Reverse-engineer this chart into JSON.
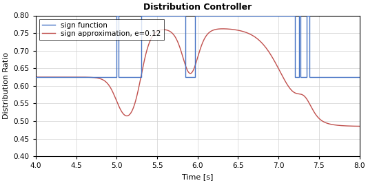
{
  "title": "Distribution Controller",
  "xlabel": "Time [s]",
  "ylabel": "Distribution Ratio",
  "xlim": [
    4,
    8
  ],
  "ylim": [
    0.4,
    0.8
  ],
  "xticks": [
    4,
    4.5,
    5,
    5.5,
    6,
    6.5,
    7,
    7.5,
    8
  ],
  "yticks": [
    0.4,
    0.45,
    0.5,
    0.55,
    0.6,
    0.65,
    0.7,
    0.75,
    0.8
  ],
  "blue_color": "#4472C4",
  "orange_color": "#C0504D",
  "legend_labels": [
    "sign function",
    "sign approximation, e=0.12"
  ],
  "blue_steady": 0.625,
  "blue_high": 0.8,
  "epsilon": 0.12,
  "orange_low": 0.485,
  "orange_high": 0.765,
  "orange_steady": 0.625,
  "blue_segments": [
    [
      4.0,
      0.625
    ],
    [
      5.0,
      0.625
    ],
    [
      5.0,
      0.8
    ],
    [
      5.02,
      0.8
    ],
    [
      5.02,
      0.625
    ],
    [
      5.3,
      0.625
    ],
    [
      5.3,
      0.8
    ],
    [
      5.85,
      0.8
    ],
    [
      5.85,
      0.625
    ],
    [
      5.97,
      0.625
    ],
    [
      5.97,
      0.8
    ],
    [
      7.2,
      0.8
    ],
    [
      7.2,
      0.625
    ],
    [
      7.25,
      0.625
    ],
    [
      7.25,
      0.8
    ],
    [
      7.27,
      0.8
    ],
    [
      7.27,
      0.625
    ],
    [
      7.35,
      0.625
    ],
    [
      7.35,
      0.8
    ],
    [
      7.38,
      0.8
    ],
    [
      7.38,
      0.625
    ],
    [
      8.0,
      0.625
    ]
  ],
  "orange_transitions": [
    [
      5.0,
      -1
    ],
    [
      5.3,
      1
    ],
    [
      5.85,
      -1
    ],
    [
      5.97,
      1
    ],
    [
      7.0,
      -1
    ],
    [
      7.35,
      0
    ]
  ]
}
